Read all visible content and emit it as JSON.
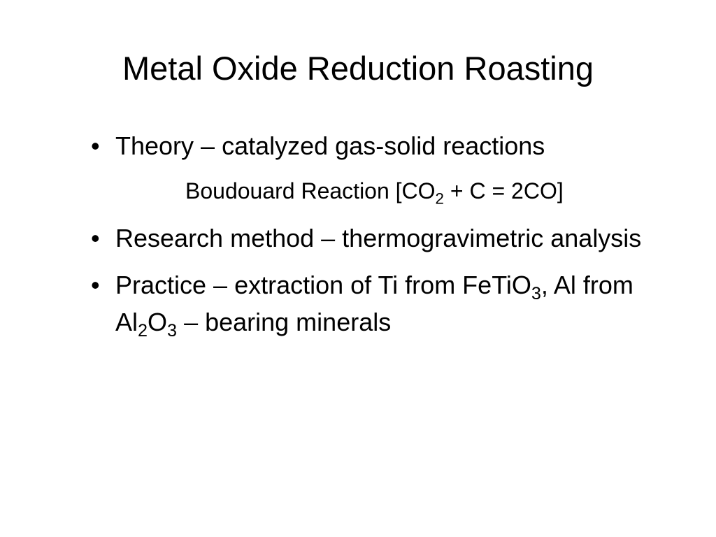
{
  "slide": {
    "title": "Metal Oxide Reduction Roasting",
    "bullets": [
      {
        "type": "bullet",
        "segments": [
          {
            "text": "Theory – catalyzed gas-solid reactions",
            "sub": false
          }
        ]
      },
      {
        "type": "sub",
        "segments": [
          {
            "text": "Boudouard Reaction [CO",
            "sub": false
          },
          {
            "text": "2",
            "sub": true
          },
          {
            "text": " + C = 2CO]",
            "sub": false
          }
        ]
      },
      {
        "type": "bullet",
        "segments": [
          {
            "text": "Research method – thermogravimetric analysis",
            "sub": false
          }
        ]
      },
      {
        "type": "bullet",
        "segments": [
          {
            "text": "Practice – extraction of Ti from FeTiO",
            "sub": false
          },
          {
            "text": "3",
            "sub": true
          },
          {
            "text": ", Al from Al",
            "sub": false
          },
          {
            "text": "2",
            "sub": true
          },
          {
            "text": "O",
            "sub": false
          },
          {
            "text": "3",
            "sub": true
          },
          {
            "text": " – bearing minerals",
            "sub": false
          }
        ]
      }
    ]
  },
  "style": {
    "background_color": "#ffffff",
    "text_color": "#000000",
    "title_fontsize": 47,
    "bullet_fontsize": 36,
    "sub_fontsize": 32,
    "font_family": "Arial"
  }
}
